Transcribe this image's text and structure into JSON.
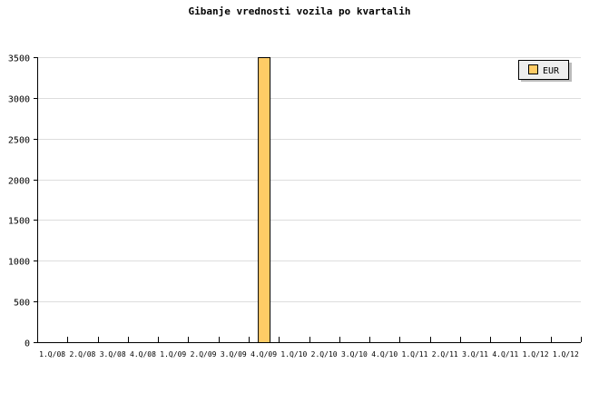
{
  "chart_data": {
    "type": "bar",
    "title": "Gibanje vrednosti vozila po kvartalih",
    "xlabel": "",
    "ylabel": "",
    "categories": [
      "1.Q/08",
      "2.Q/08",
      "3.Q/08",
      "4.Q/08",
      "1.Q/09",
      "2.Q/09",
      "3.Q/09",
      "4.Q/09",
      "1.Q/10",
      "2.Q/10",
      "3.Q/10",
      "4.Q/10",
      "1.Q/11",
      "2.Q/11",
      "3.Q/11",
      "4.Q/11",
      "1.Q/12",
      "1.Q/12"
    ],
    "series": [
      {
        "name": "EUR",
        "color": "#ffcc66",
        "values": [
          0,
          0,
          0,
          0,
          0,
          0,
          0,
          3500,
          0,
          0,
          0,
          0,
          0,
          0,
          0,
          0,
          0,
          0
        ]
      }
    ],
    "ylim": [
      0,
      3500
    ],
    "yticks": [
      0,
      500,
      1000,
      1500,
      2000,
      2500,
      3000,
      3500
    ],
    "grid": true,
    "legend": "top-right"
  }
}
